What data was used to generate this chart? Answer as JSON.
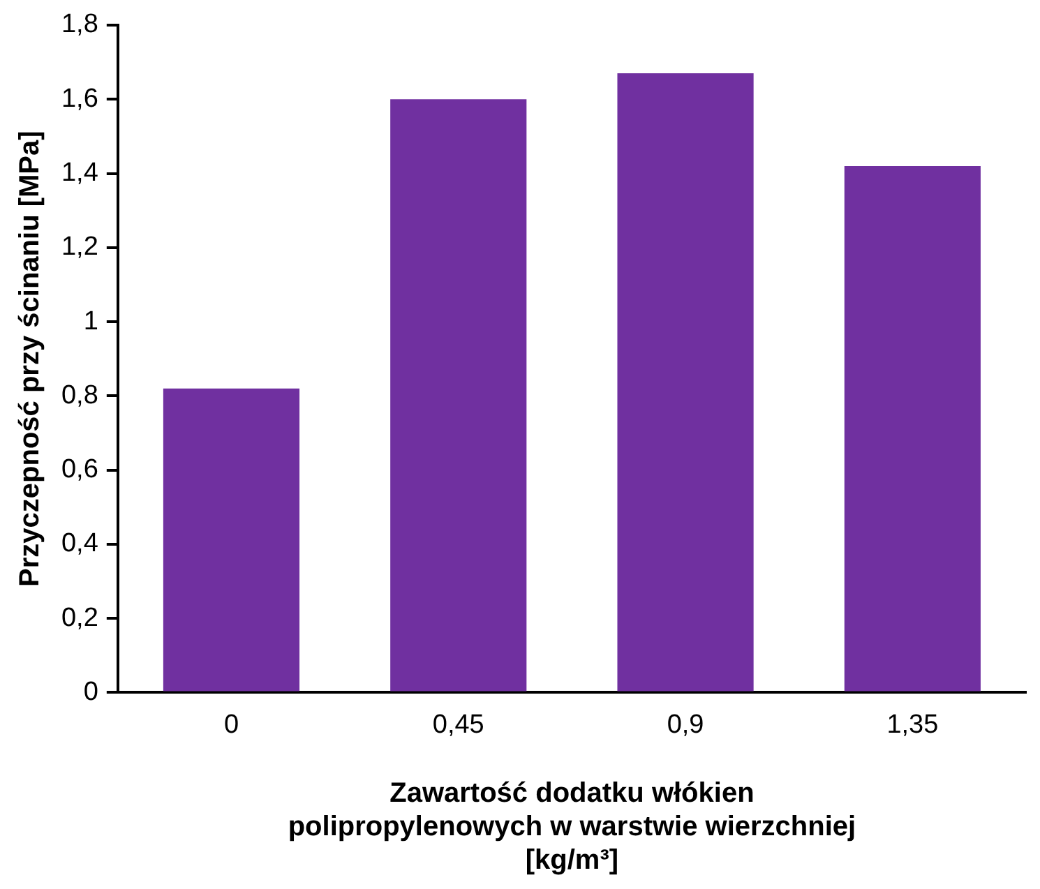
{
  "chart_data": {
    "type": "bar",
    "xlabel": "Zawartość dodatku włókien\npolipropylenowych w warstwie wierzchniej\n[kg/m³]",
    "ylabel": "Przyczepność przy ścinaniu [MPa]",
    "categories": [
      "0",
      "0,45",
      "0,9",
      "1,35"
    ],
    "values": [
      0.82,
      1.6,
      1.67,
      1.42
    ],
    "color": "#7030a0",
    "ylim": [
      0,
      1.8
    ],
    "yticks": [
      0,
      {
        "value": 0.2,
        "label": "0,2"
      },
      {
        "value": 0.4,
        "label": "0,4"
      },
      {
        "value": 0.6,
        "label": "0,6"
      },
      {
        "value": 0.8,
        "label": "0,8"
      },
      1,
      {
        "value": 1.2,
        "label": "1,2"
      },
      {
        "value": 1.4,
        "label": "1,4"
      },
      {
        "value": 1.6,
        "label": "1,6"
      },
      {
        "value": 1.8,
        "label": "1,8"
      }
    ],
    "grid": false,
    "legend": false
  }
}
